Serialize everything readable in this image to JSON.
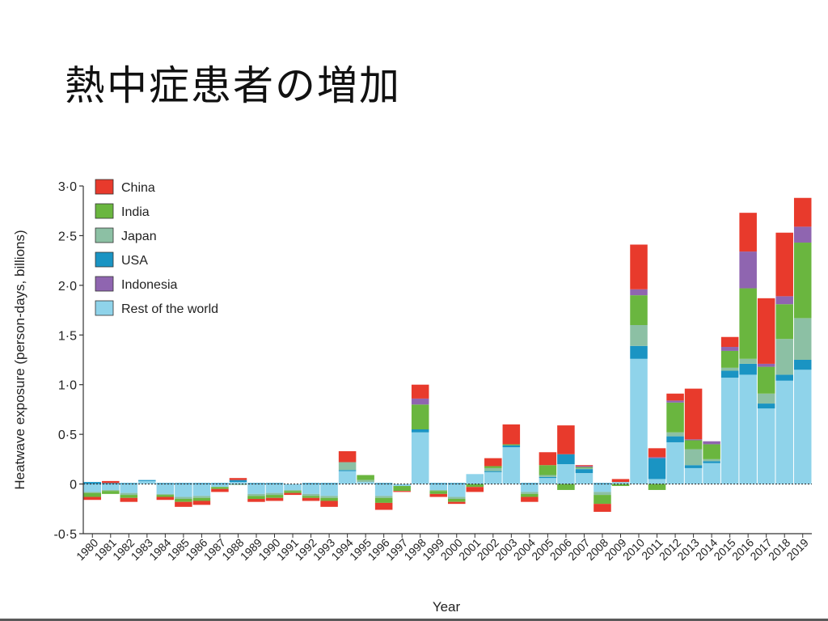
{
  "slide": {
    "title": "熱中症患者の増加"
  },
  "chart_data": {
    "type": "bar",
    "stacked": true,
    "xlabel": "Year",
    "ylabel": "Heatwave exposure (person-days, billions)",
    "ylim": [
      -0.5,
      3.0
    ],
    "yticks": [
      "-0·5",
      "0",
      "0·5",
      "1·0",
      "1·5",
      "2·0",
      "2·5",
      "3·0"
    ],
    "ytick_values": [
      -0.5,
      0,
      0.5,
      1.0,
      1.5,
      2.0,
      2.5,
      3.0
    ],
    "legend_position": "top-left",
    "categories": [
      "1980",
      "1981",
      "1982",
      "1983",
      "1984",
      "1985",
      "1986",
      "1987",
      "1988",
      "1989",
      "1990",
      "1991",
      "1992",
      "1993",
      "1994",
      "1995",
      "1996",
      "1997",
      "1998",
      "1999",
      "2000",
      "2001",
      "2002",
      "2003",
      "2004",
      "2005",
      "2006",
      "2007",
      "2008",
      "2009",
      "2010",
      "2011",
      "2012",
      "2013",
      "2014",
      "2015",
      "2016",
      "2017",
      "2018",
      "2019"
    ],
    "series": [
      {
        "name": "Rest of the world",
        "color": "#8fd3ea",
        "values": [
          -0.08,
          -0.06,
          -0.09,
          0.03,
          -0.1,
          -0.13,
          -0.12,
          -0.03,
          0.02,
          -0.1,
          -0.09,
          -0.06,
          -0.1,
          -0.12,
          0.13,
          0.02,
          -0.12,
          -0.02,
          0.52,
          -0.06,
          -0.13,
          0.1,
          0.12,
          0.37,
          -0.08,
          0.06,
          0.2,
          0.11,
          -0.08,
          0.02,
          1.26,
          0.05,
          0.42,
          0.16,
          0.21,
          1.07,
          1.1,
          0.76,
          1.04,
          1.15
        ]
      },
      {
        "name": "USA",
        "color": "#1a94c3",
        "values": [
          0.02,
          0.01,
          0.01,
          0.01,
          0.01,
          0.01,
          0.01,
          0.01,
          0.02,
          0.01,
          0.01,
          0.0,
          0.01,
          0.01,
          0.01,
          0.0,
          0.01,
          0.0,
          0.03,
          0.01,
          0.01,
          0.0,
          0.01,
          0.02,
          0.01,
          0.01,
          0.1,
          0.04,
          0.01,
          0.0,
          0.13,
          0.21,
          0.06,
          0.03,
          0.02,
          0.07,
          0.11,
          0.05,
          0.06,
          0.1
        ]
      },
      {
        "name": "Japan",
        "color": "#8cc0a4",
        "values": [
          -0.01,
          -0.01,
          -0.02,
          0.0,
          -0.01,
          -0.02,
          -0.02,
          0.0,
          -0.01,
          -0.02,
          -0.02,
          -0.01,
          -0.02,
          -0.02,
          0.08,
          0.02,
          -0.02,
          0.0,
          0.0,
          -0.01,
          -0.02,
          0.0,
          0.03,
          0.0,
          -0.02,
          0.02,
          0.0,
          0.01,
          -0.03,
          0.0,
          0.21,
          0.0,
          0.04,
          0.16,
          0.02,
          0.03,
          0.05,
          0.1,
          0.36,
          0.42
        ]
      },
      {
        "name": "India",
        "color": "#6ab63f",
        "values": [
          -0.04,
          -0.03,
          -0.03,
          0.0,
          -0.02,
          -0.03,
          -0.03,
          -0.02,
          0.0,
          -0.03,
          -0.03,
          -0.02,
          -0.02,
          -0.03,
          0.0,
          0.05,
          -0.05,
          -0.05,
          0.25,
          -0.03,
          -0.03,
          -0.03,
          0.02,
          0.01,
          -0.03,
          0.1,
          -0.06,
          0.01,
          -0.09,
          -0.02,
          0.3,
          -0.06,
          0.3,
          0.09,
          0.15,
          0.17,
          0.71,
          0.27,
          0.35,
          0.76
        ]
      },
      {
        "name": "Indonesia",
        "color": "#8f65b0",
        "values": [
          0.0,
          0.0,
          0.0,
          0.0,
          0.0,
          0.0,
          0.0,
          0.0,
          0.0,
          0.0,
          0.0,
          0.0,
          0.0,
          0.0,
          0.0,
          0.0,
          0.0,
          0.0,
          0.06,
          0.0,
          0.0,
          0.0,
          0.0,
          0.0,
          0.0,
          0.0,
          0.0,
          0.01,
          0.0,
          0.0,
          0.06,
          0.01,
          0.02,
          0.01,
          0.03,
          0.04,
          0.37,
          0.03,
          0.08,
          0.16
        ]
      },
      {
        "name": "China",
        "color": "#e83a2c",
        "values": [
          -0.03,
          0.02,
          -0.04,
          0.0,
          -0.03,
          -0.05,
          -0.04,
          -0.03,
          0.02,
          -0.03,
          -0.03,
          -0.02,
          -0.03,
          -0.06,
          0.11,
          0.0,
          -0.07,
          -0.01,
          0.14,
          -0.03,
          -0.02,
          -0.05,
          0.08,
          0.2,
          -0.05,
          0.13,
          0.29,
          0.01,
          -0.08,
          0.03,
          0.45,
          0.09,
          0.07,
          0.51,
          0.0,
          0.1,
          0.39,
          0.66,
          0.64,
          0.29
        ]
      }
    ]
  }
}
